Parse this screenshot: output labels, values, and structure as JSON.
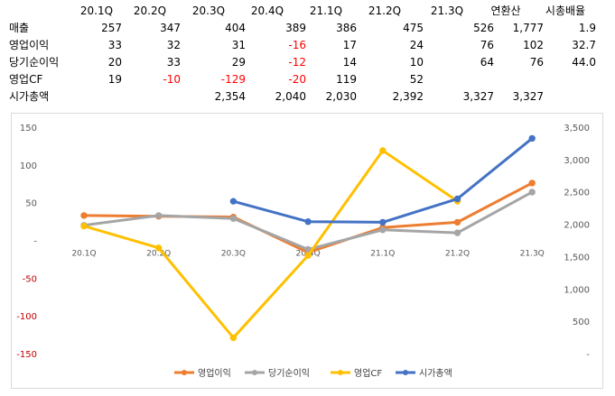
{
  "sheet": {
    "headers": [
      "20.1Q",
      "20.2Q",
      "20.3Q",
      "20.4Q",
      "21.1Q",
      "21.2Q",
      "21.3Q",
      "연환산",
      "시총배율"
    ],
    "rows": [
      {
        "label": "매출",
        "cells": [
          "257",
          "347",
          "404",
          "389",
          "386",
          "475",
          "526",
          "1,777",
          "1.9"
        ]
      },
      {
        "label": "영업이익",
        "cells": [
          "33",
          "32",
          "31",
          "-16",
          "17",
          "24",
          "76",
          "102",
          "32.7"
        ]
      },
      {
        "label": "당기순이익",
        "cells": [
          "20",
          "33",
          "29",
          "-12",
          "14",
          "10",
          "64",
          "76",
          "44.0"
        ]
      },
      {
        "label": "영업CF",
        "cells": [
          "19",
          "-10",
          "-129",
          "-20",
          "119",
          "52",
          "",
          "",
          ""
        ]
      },
      {
        "label": "시가총액",
        "cells": [
          "",
          "",
          "2,354",
          "2,040",
          "2,030",
          "2,392",
          "3,327",
          "3,327",
          ""
        ]
      }
    ]
  },
  "chart_data": {
    "type": "line",
    "categories": [
      "20.1Q",
      "20.2Q",
      "20.3Q",
      "20.4Q",
      "21.1Q",
      "21.2Q",
      "21.3Q"
    ],
    "series": [
      {
        "name": "영업이익",
        "axis": "left",
        "color": "#ed7d31",
        "values": [
          33,
          32,
          31,
          -16,
          17,
          24,
          76
        ]
      },
      {
        "name": "당기순이익",
        "axis": "left",
        "color": "#a5a5a5",
        "values": [
          20,
          33,
          29,
          -12,
          14,
          10,
          64
        ]
      },
      {
        "name": "영업CF",
        "axis": "left",
        "color": "#ffc000",
        "values": [
          19,
          -10,
          -129,
          -20,
          119,
          52,
          null
        ]
      },
      {
        "name": "시가총액",
        "axis": "right",
        "color": "#4472c4",
        "values": [
          null,
          null,
          2354,
          2040,
          2030,
          2392,
          3327
        ]
      }
    ],
    "ylim_left": [
      -150,
      150
    ],
    "ylim_right": [
      0,
      3500
    ],
    "left_ticks": [
      "150",
      "100",
      "50",
      "-",
      "-50",
      "-100",
      "-150"
    ],
    "right_ticks": [
      "3,500",
      "3,000",
      "2,500",
      "2,000",
      "1,500",
      "1,000",
      "500",
      "-"
    ],
    "legend_position": "bottom",
    "grid": false
  },
  "colors": {
    "negative": "#ff0000",
    "axis_label_negative": "#c00000"
  }
}
